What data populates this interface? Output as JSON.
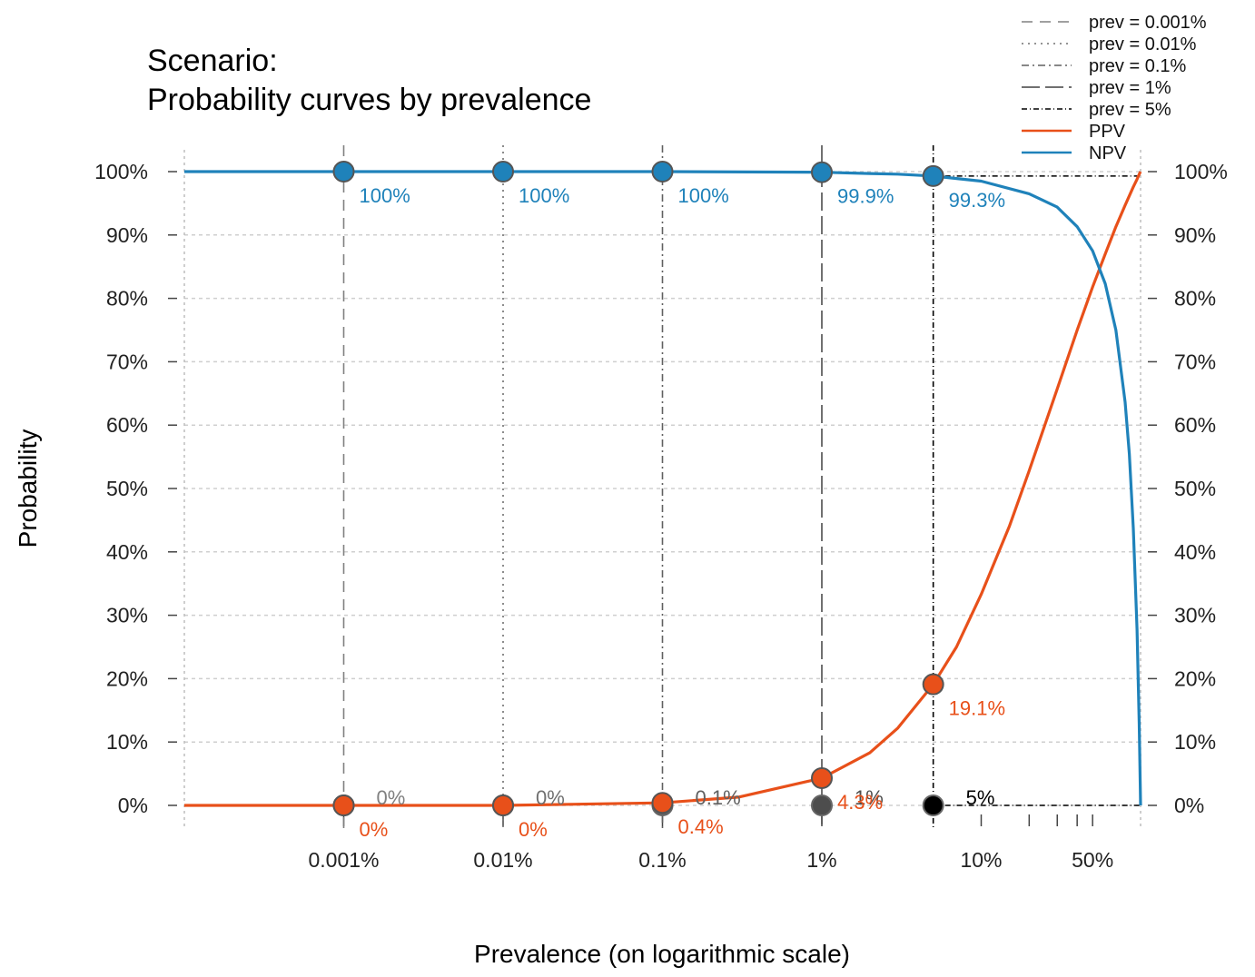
{
  "chart_data": {
    "type": "line",
    "title_lines": [
      "Scenario:",
      "Probability curves by prevalence"
    ],
    "xlabel": "Prevalence (on logarithmic scale)",
    "ylabel": "Probability",
    "x_scale": "log",
    "xlim": [
      0.0001,
      100
    ],
    "ylim": [
      0,
      100
    ],
    "x_tick_labels": [
      {
        "value": 0.001,
        "label": "0.001%"
      },
      {
        "value": 0.01,
        "label": "0.01%"
      },
      {
        "value": 0.1,
        "label": "0.1%"
      },
      {
        "value": 1,
        "label": "1%"
      },
      {
        "value": 10,
        "label": "10%"
      },
      {
        "value": 50,
        "label": "50%"
      }
    ],
    "x_minor_ticks": [
      20,
      30,
      40
    ],
    "y_ticks": [
      0,
      10,
      20,
      30,
      40,
      50,
      60,
      70,
      80,
      90,
      100
    ],
    "y_tick_labels": [
      "0%",
      "10%",
      "20%",
      "30%",
      "40%",
      "50%",
      "60%",
      "70%",
      "80%",
      "90%",
      "100%"
    ],
    "grid": true,
    "legend_position": "top-right",
    "legend": [
      {
        "label": "prev = 0.001%",
        "kind": "prev",
        "dash": "12,8",
        "color": "#808080"
      },
      {
        "label": "prev = 0.01%",
        "kind": "prev",
        "dash": "2,5",
        "color": "#707070"
      },
      {
        "label": "prev = 0.1%",
        "kind": "prev",
        "dash": "8,4,2,4",
        "color": "#606060"
      },
      {
        "label": "prev = 1%",
        "kind": "prev",
        "dash": "20,6",
        "color": "#404040"
      },
      {
        "label": "prev = 5%",
        "kind": "prev",
        "dash": "6,3,1,3",
        "color": "#000000"
      },
      {
        "label": "PPV",
        "kind": "series",
        "color": "#E8501A"
      },
      {
        "label": "NPV",
        "kind": "series",
        "color": "#1F82BA"
      }
    ],
    "series": [
      {
        "name": "PPV",
        "color": "#E8501A",
        "x": [
          0.0001,
          0.001,
          0.01,
          0.1,
          0.3,
          1,
          2,
          3,
          5,
          7,
          10,
          15,
          20,
          30,
          40,
          50,
          60,
          70,
          80,
          90,
          95,
          99,
          100
        ],
        "y": [
          0,
          0,
          0,
          0.4,
          1.3,
          4.3,
          8.3,
          12.2,
          19.1,
          25,
          33.3,
          44,
          52.8,
          65.7,
          75,
          81.8,
          87,
          91.3,
          94.7,
          97.6,
          98.8,
          99.8,
          100
        ]
      },
      {
        "name": "NPV",
        "color": "#1F82BA",
        "x": [
          0.0001,
          0.001,
          0.01,
          0.1,
          1,
          2,
          3,
          5,
          10,
          20,
          30,
          40,
          50,
          60,
          70,
          80,
          85,
          90,
          95,
          98,
          99.5,
          100
        ],
        "y": [
          100,
          100,
          100,
          100,
          99.9,
          99.7,
          99.6,
          99.3,
          98.5,
          96.5,
          94.4,
          91.3,
          87.5,
          82.3,
          75,
          63.6,
          55.5,
          43.7,
          27.8,
          12.8,
          3.5,
          0
        ]
      }
    ],
    "prevalence_markers": [
      {
        "prev": 0.001,
        "label": "0%",
        "ppv": 0,
        "ppv_label": "0%",
        "npv": 100,
        "npv_label": "100%",
        "color": "#808080",
        "dash": "12,8"
      },
      {
        "prev": 0.01,
        "label": "0%",
        "ppv": 0,
        "ppv_label": "0%",
        "npv": 100,
        "npv_label": "100%",
        "color": "#707070",
        "dash": "2,5"
      },
      {
        "prev": 0.1,
        "label": "0.1%",
        "ppv": 0.4,
        "ppv_label": "0.4%",
        "npv": 100,
        "npv_label": "100%",
        "color": "#606060",
        "dash": "8,4,2,4"
      },
      {
        "prev": 1,
        "label": "1%",
        "ppv": 4.3,
        "ppv_label": "4.3%",
        "npv": 99.9,
        "npv_label": "99.9%",
        "color": "#4d4d4d",
        "dash": "20,6"
      },
      {
        "prev": 5,
        "label": "5%",
        "ppv": 19.1,
        "ppv_label": "19.1%",
        "npv": 99.3,
        "npv_label": "99.3%",
        "color": "#000000",
        "dash": "6,3,1,3"
      }
    ]
  }
}
